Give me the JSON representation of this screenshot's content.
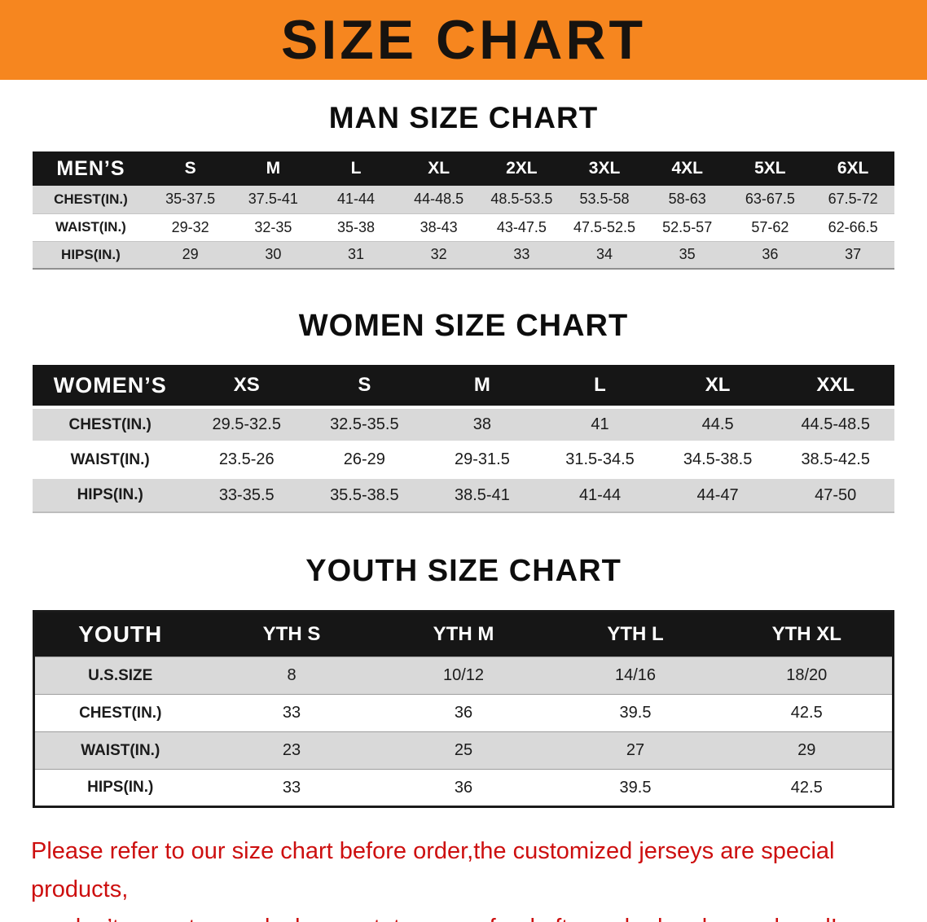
{
  "banner": {
    "title": "SIZE CHART",
    "bg_color": "#f6861f",
    "text_color": "#17130f"
  },
  "sections": [
    {
      "heading": "MAN SIZE CHART",
      "table": {
        "name": "mens",
        "label": "MEN’S",
        "columns": [
          "S",
          "M",
          "L",
          "XL",
          "2XL",
          "3XL",
          "4XL",
          "5XL",
          "6XL"
        ],
        "rows": [
          {
            "label": "CHEST(IN.)",
            "values": [
              "35-37.5",
              "37.5-41",
              "41-44",
              "44-48.5",
              "48.5-53.5",
              "53.5-58",
              "58-63",
              "63-67.5",
              "67.5-72"
            ]
          },
          {
            "label": "WAIST(IN.)",
            "values": [
              "29-32",
              "32-35",
              "35-38",
              "38-43",
              "43-47.5",
              "47.5-52.5",
              "52.5-57",
              "57-62",
              "62-66.5"
            ]
          },
          {
            "label": "HIPS(IN.)",
            "values": [
              "29",
              "30",
              "31",
              "32",
              "33",
              "34",
              "35",
              "36",
              "37"
            ]
          }
        ]
      }
    },
    {
      "heading": "WOMEN SIZE CHART",
      "table": {
        "name": "womens",
        "label": "WOMEN’S",
        "columns": [
          "XS",
          "S",
          "M",
          "L",
          "XL",
          "XXL"
        ],
        "rows": [
          {
            "label": "CHEST(IN.)",
            "values": [
              "29.5-32.5",
              "32.5-35.5",
              "38",
              "41",
              "44.5",
              "44.5-48.5"
            ]
          },
          {
            "label": "WAIST(IN.)",
            "values": [
              "23.5-26",
              "26-29",
              "29-31.5",
              "31.5-34.5",
              "34.5-38.5",
              "38.5-42.5"
            ]
          },
          {
            "label": "HIPS(IN.)",
            "values": [
              "33-35.5",
              "35.5-38.5",
              "38.5-41",
              "41-44",
              "44-47",
              "47-50"
            ]
          }
        ]
      }
    },
    {
      "heading": "YOUTH SIZE CHART",
      "table": {
        "name": "youth",
        "label": "YOUTH",
        "columns": [
          "YTH S",
          "YTH M",
          "YTH L",
          "YTH XL"
        ],
        "rows": [
          {
            "label": "U.S.SIZE",
            "values": [
              "8",
              "10/12",
              "14/16",
              "18/20"
            ]
          },
          {
            "label": "CHEST(IN.)",
            "values": [
              "33",
              "36",
              "39.5",
              "42.5"
            ]
          },
          {
            "label": "WAIST(IN.)",
            "values": [
              "23",
              "25",
              "27",
              "29"
            ]
          },
          {
            "label": "HIPS(IN.)",
            "values": [
              "33",
              "36",
              "39.5",
              "42.5"
            ]
          }
        ]
      }
    }
  ],
  "footer": {
    "line1": "Please refer to our size chart before order,the customized jerseys are special products,",
    "line2": "we don’t accept cancel, change, teturn or refund after order has been placed!",
    "text_color": "#cd0f0f"
  }
}
